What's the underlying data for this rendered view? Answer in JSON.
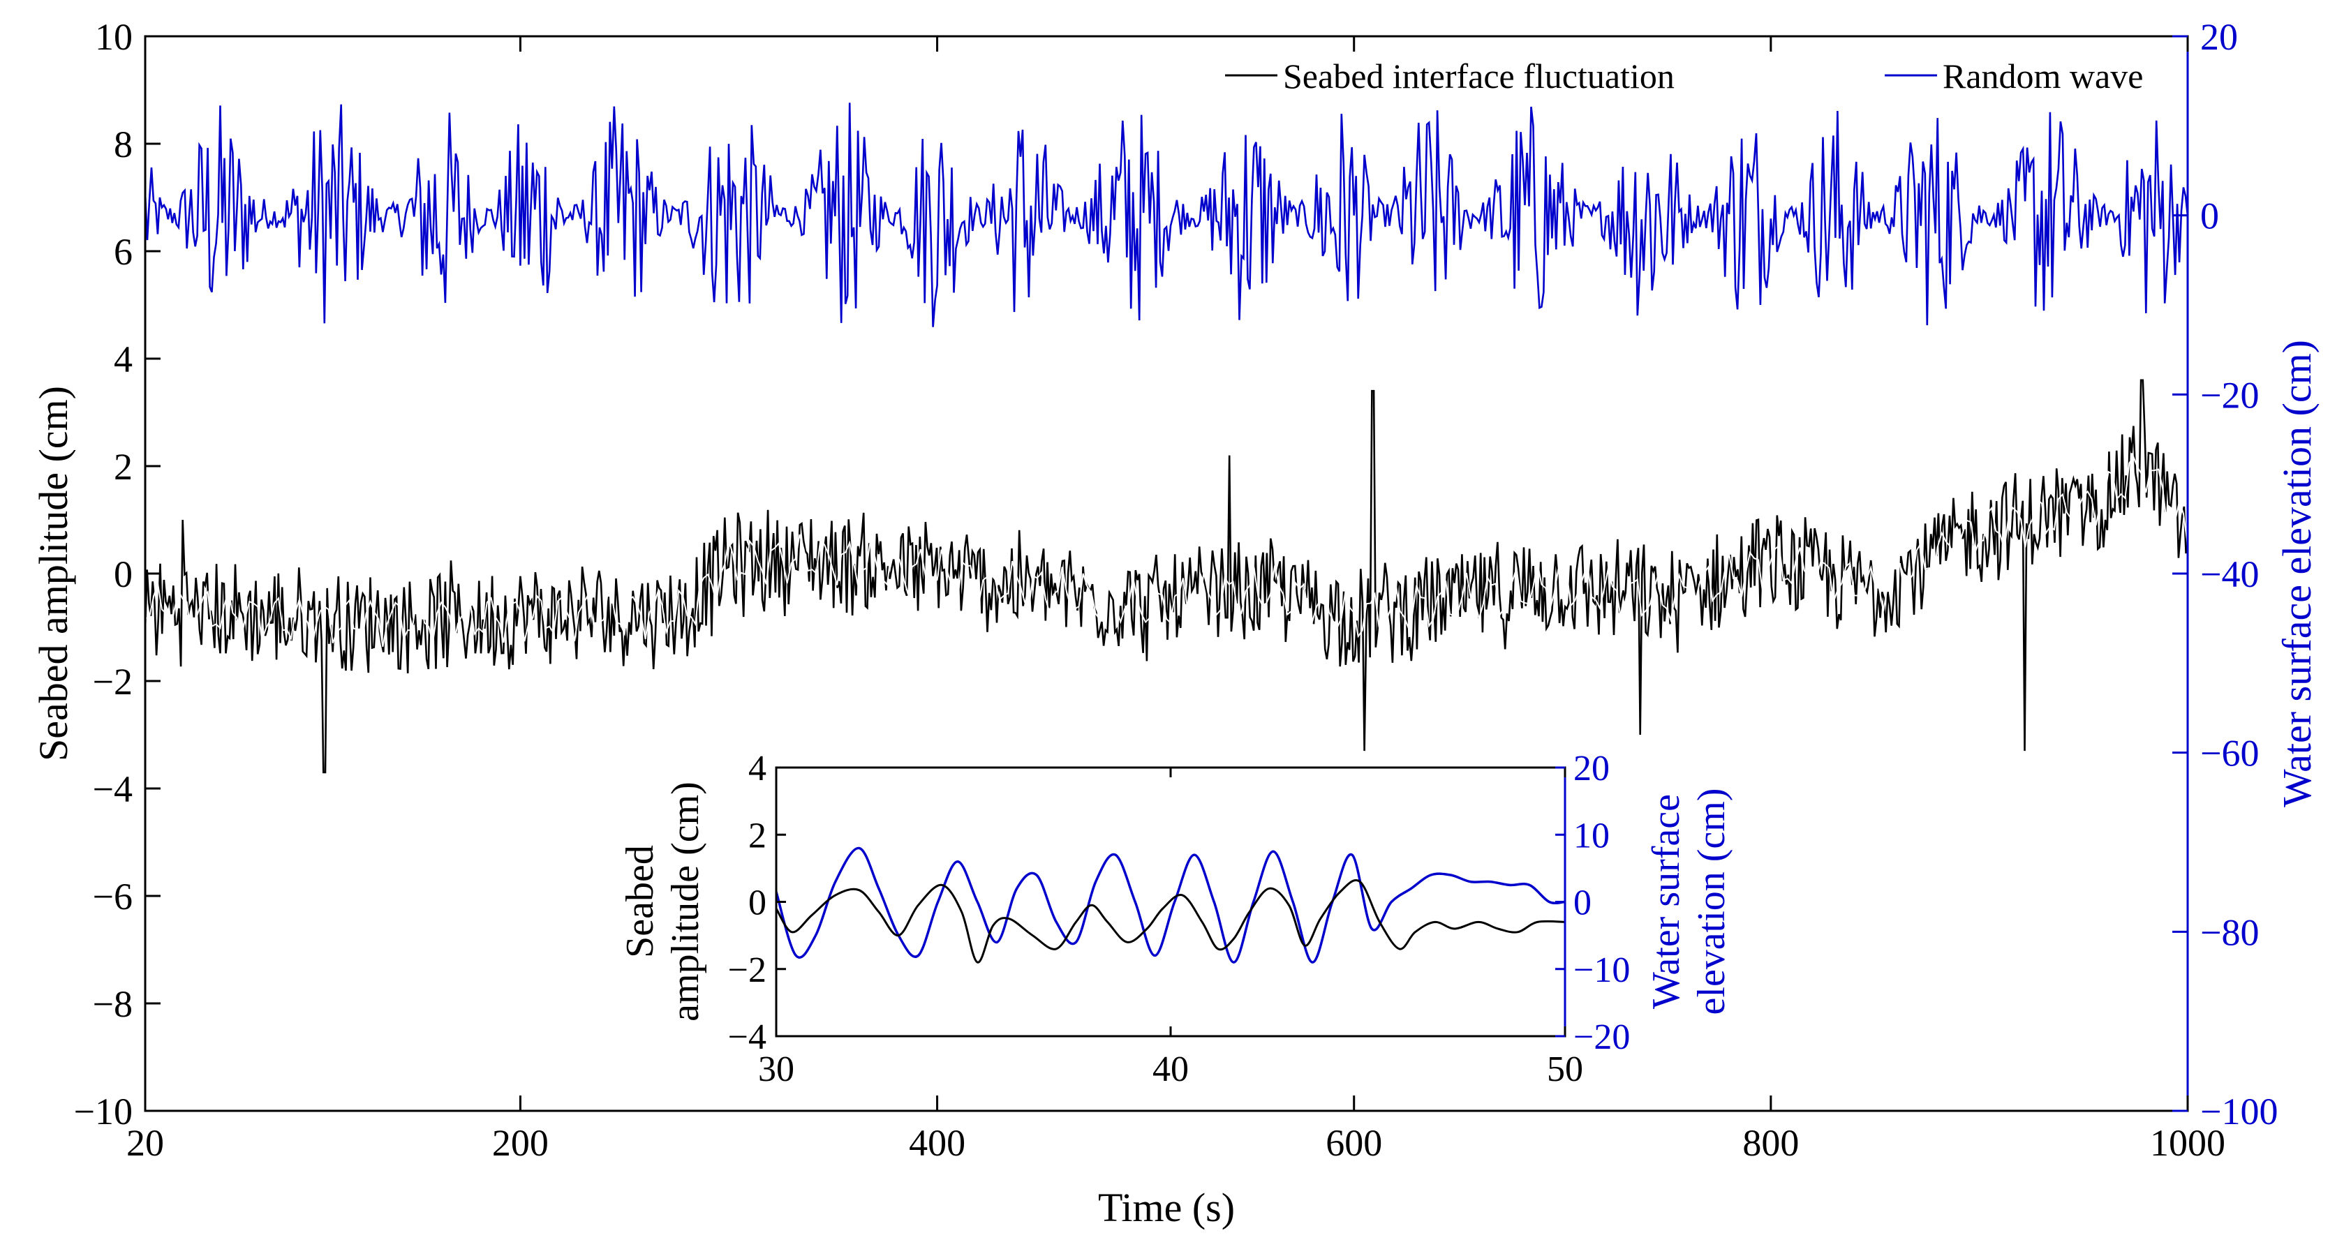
{
  "chart_data": [
    {
      "id": "main",
      "type": "line",
      "xlabel": "Time (s)",
      "ylabel_left": "Seabed amplitude (cm)",
      "ylabel_right": "Water surface elevation (cm)",
      "xlim": [
        20,
        1000
      ],
      "ylim_left": [
        -10,
        10
      ],
      "ylim_right": [
        -100,
        20
      ],
      "xticks": [
        20,
        200,
        400,
        600,
        800,
        1000
      ],
      "yticks_left": [
        -10,
        -8,
        -6,
        -4,
        -2,
        0,
        2,
        4,
        6,
        8,
        10
      ],
      "yticks_right": [
        -100,
        -80,
        -60,
        -40,
        -20,
        0,
        20
      ],
      "legend_position": "top-right",
      "series": [
        {
          "name": "Seabed interface fluctuation",
          "axis": "left",
          "color": "#000000",
          "mean_trend": {
            "x": [
              20,
              100,
              200,
              280,
              300,
              340,
              400,
              450,
              500,
              560,
              600,
              650,
              700,
              750,
              800,
              850,
              900,
              950,
              980,
              1000
            ],
            "y": [
              -0.6,
              -0.9,
              -0.8,
              -0.7,
              0.2,
              0.3,
              0.0,
              -0.3,
              -0.6,
              -0.3,
              -0.8,
              -0.5,
              -0.2,
              -0.5,
              0.2,
              -0.3,
              0.8,
              1.2,
              2.0,
              0.7
            ]
          },
          "noise_amplitude": 1.1,
          "labelled_peaks": [
            [
              38,
              1.0
            ],
            [
              106,
              -3.7
            ],
            [
              540,
              2.2
            ],
            [
              609,
              3.4
            ],
            [
              605,
              -3.3
            ],
            [
              737,
              -3.0
            ],
            [
              922,
              -3.3
            ],
            [
              978,
              3.6
            ]
          ]
        },
        {
          "name": "Random wave",
          "axis": "right",
          "color": "#0000cc",
          "mean": 0,
          "amplitude_range": [
            -13,
            13
          ]
        }
      ]
    },
    {
      "id": "inset",
      "type": "line",
      "ylabel_left_lines": [
        "Seabed",
        "amplitude (cm)"
      ],
      "ylabel_right_lines": [
        "Water surface",
        "elevation (cm)"
      ],
      "xlim": [
        30,
        50
      ],
      "ylim_left": [
        -4,
        4
      ],
      "ylim_right": [
        -20,
        20
      ],
      "xticks": [
        30,
        40,
        50
      ],
      "yticks_left": [
        -4,
        -2,
        0,
        2,
        4
      ],
      "yticks_right": [
        -20,
        -10,
        0,
        10,
        20
      ],
      "series": [
        {
          "name": "Seabed interface fluctuation",
          "axis": "left",
          "color": "#000000",
          "x": [
            30,
            30.4,
            30.9,
            31.5,
            32.1,
            32.6,
            33.1,
            33.6,
            34.2,
            34.7,
            35.1,
            35.5,
            35.9,
            36.5,
            37.1,
            37.6,
            38.0,
            38.4,
            38.9,
            39.4,
            39.8,
            40.3,
            40.8,
            41.2,
            41.6,
            42.0,
            42.5,
            43.0,
            43.4,
            43.8,
            44.3,
            44.8,
            45.3,
            45.8,
            46.2,
            46.7,
            47.2,
            47.8,
            48.3,
            48.8,
            49.3,
            50.0
          ],
          "y": [
            -0.2,
            -0.9,
            -0.4,
            0.2,
            0.35,
            -0.3,
            -1.0,
            -0.1,
            0.5,
            -0.3,
            -1.8,
            -0.7,
            -0.5,
            -1.0,
            -1.4,
            -0.6,
            -0.1,
            -0.6,
            -1.2,
            -0.8,
            -0.2,
            0.2,
            -0.6,
            -1.4,
            -1.1,
            -0.3,
            0.4,
            -0.1,
            -1.3,
            -0.5,
            0.3,
            0.6,
            -0.6,
            -1.4,
            -0.9,
            -0.6,
            -0.8,
            -0.6,
            -0.8,
            -0.9,
            -0.6,
            -0.6
          ]
        },
        {
          "name": "Random wave",
          "axis": "right",
          "color": "#0000cc",
          "x": [
            30,
            30.5,
            31.0,
            31.5,
            32.1,
            32.6,
            33.1,
            33.6,
            34.1,
            34.6,
            35.1,
            35.6,
            36.1,
            36.6,
            37.1,
            37.6,
            38.1,
            38.6,
            39.1,
            39.6,
            40.1,
            40.6,
            41.1,
            41.6,
            42.1,
            42.6,
            43.1,
            43.6,
            44.1,
            44.6,
            45.1,
            45.6,
            46.1,
            46.6,
            47.1,
            47.6,
            48.1,
            48.6,
            49.1,
            49.6,
            50.0
          ],
          "y": [
            1.5,
            -8.0,
            -5.0,
            3.0,
            8.0,
            2.0,
            -5.0,
            -8.0,
            0.0,
            6.0,
            0.0,
            -6.0,
            2.0,
            4.0,
            -3.0,
            -6.0,
            3.0,
            7.0,
            0.0,
            -8.0,
            0.0,
            7.0,
            0.0,
            -9.0,
            0.0,
            7.5,
            0.0,
            -9.0,
            0.0,
            7.0,
            -4.0,
            0.0,
            2.0,
            4.0,
            4.0,
            3.0,
            3.0,
            2.5,
            2.5,
            0.0,
            0.0
          ]
        }
      ]
    }
  ]
}
